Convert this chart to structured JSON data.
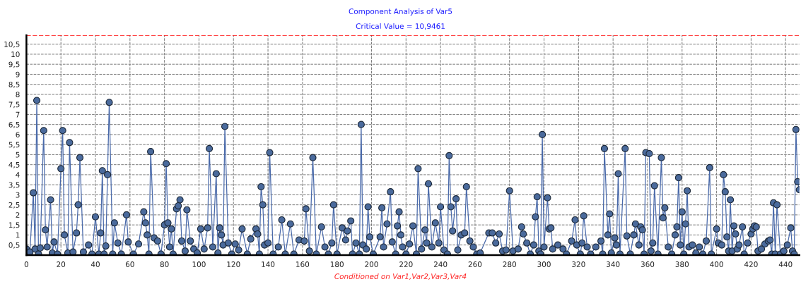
{
  "chart_data": {
    "type": "line",
    "title": "Component Analysis of Var5",
    "subtitle": "Critical Value = 10,9461",
    "annotations": [
      "Conditioned on Var1,Var2,Var3,Var4"
    ],
    "x": [
      0,
      2,
      4,
      5,
      6,
      7,
      8,
      10,
      11,
      12,
      14,
      15,
      16,
      18,
      20,
      21,
      22,
      24,
      25,
      27,
      29,
      30,
      31,
      33,
      36,
      38,
      40,
      42,
      43,
      44,
      45,
      46,
      47,
      48,
      50,
      51,
      53,
      55,
      58,
      59,
      62,
      65,
      68,
      69,
      70,
      71,
      72,
      74,
      76,
      78,
      80,
      81,
      82,
      83,
      84,
      85,
      87,
      88,
      89,
      90,
      92,
      93,
      95,
      97,
      99,
      101,
      103,
      105,
      106,
      108,
      110,
      111,
      112,
      113,
      114,
      115,
      117,
      119,
      121,
      123,
      125,
      128,
      130,
      133,
      134,
      135,
      136,
      137,
      138,
      140,
      141,
      143,
      146,
      148,
      150,
      153,
      155,
      158,
      161,
      162,
      164,
      166,
      168,
      171,
      173,
      175,
      177,
      178,
      180,
      183,
      185,
      186,
      188,
      189,
      191,
      193,
      194,
      195,
      197,
      198,
      199,
      201,
      205,
      206,
      207,
      209,
      211,
      212,
      214,
      215,
      216,
      217,
      218,
      220,
      222,
      224,
      226,
      227,
      229,
      231,
      232,
      233,
      235,
      237,
      239,
      240,
      242,
      244,
      245,
      246,
      247,
      249,
      250,
      252,
      254,
      255,
      257,
      259,
      261,
      263,
      268,
      270,
      272,
      274,
      276,
      278,
      280,
      282,
      285,
      287,
      288,
      290,
      292,
      294,
      295,
      296,
      297,
      298,
      299,
      300,
      302,
      303,
      304,
      305,
      308,
      311,
      313,
      316,
      318,
      319,
      321,
      322,
      323,
      325,
      327,
      330,
      333,
      334,
      335,
      337,
      338,
      339,
      341,
      342,
      343,
      344,
      347,
      348,
      350,
      352,
      353,
      355,
      356,
      357,
      358,
      359,
      361,
      362,
      363,
      364,
      366,
      368,
      369,
      370,
      372,
      374,
      376,
      377,
      378,
      379,
      380,
      381,
      382,
      383,
      384,
      386,
      388,
      390,
      392,
      394,
      396,
      397,
      400,
      401,
      403,
      404,
      405,
      406,
      407,
      408,
      409,
      410,
      411,
      412,
      413,
      415,
      416,
      418,
      420,
      421,
      422,
      423,
      424,
      426,
      428,
      430,
      431,
      432,
      433,
      434,
      435,
      437,
      439,
      441,
      443,
      444,
      445,
      446,
      447,
      448
    ],
    "series": [
      {
        "color": "#4a6aaa",
        "values": [
          0.3,
          0.15,
          3.1,
          0.3,
          7.7,
          0.05,
          0.35,
          6.2,
          1.25,
          0.4,
          2.75,
          0.1,
          0.65,
          0.05,
          4.3,
          6.2,
          1.0,
          0.1,
          5.6,
          0.15,
          1.1,
          2.5,
          4.85,
          0.15,
          0.5,
          0.05,
          1.9,
          0.05,
          1.1,
          4.2,
          0.05,
          0.45,
          4.0,
          7.6,
          0.05,
          1.6,
          0.6,
          0.05,
          2.0,
          0.65,
          0.05,
          0.55,
          2.15,
          1.6,
          1.0,
          0.05,
          5.15,
          0.85,
          0.7,
          0.05,
          1.5,
          4.55,
          1.6,
          0.4,
          1.3,
          0.05,
          2.3,
          2.45,
          2.75,
          0.7,
          0.2,
          2.25,
          0.7,
          0.3,
          0.1,
          1.3,
          0.3,
          1.35,
          5.3,
          0.4,
          4.05,
          0.1,
          1.35,
          1.0,
          0.5,
          6.4,
          0.6,
          0.05,
          0.55,
          0.25,
          1.3,
          0.05,
          0.8,
          1.3,
          1.05,
          0.05,
          3.4,
          2.5,
          0.5,
          0.6,
          5.1,
          0.05,
          0.4,
          1.75,
          0.05,
          1.55,
          0.05,
          0.75,
          0.7,
          2.3,
          0.2,
          4.85,
          0.05,
          1.4,
          0.4,
          0.05,
          0.6,
          2.5,
          0.05,
          1.35,
          0.75,
          1.2,
          1.7,
          0.05,
          0.6,
          0.05,
          6.5,
          0.5,
          0.3,
          2.4,
          0.9,
          0.05,
          0.9,
          2.35,
          0.4,
          1.55,
          3.15,
          0.65,
          0.05,
          1.45,
          2.15,
          1.0,
          0.4,
          0.05,
          0.55,
          1.45,
          0.05,
          4.3,
          0.3,
          1.25,
          0.6,
          3.55,
          0.4,
          1.6,
          0.6,
          2.4,
          0.25,
          0.05,
          4.95,
          2.4,
          1.2,
          2.8,
          0.25,
          1.0,
          1.1,
          3.4,
          0.7,
          0.4,
          0.05,
          0.1,
          1.1,
          1.1,
          0.6,
          1.05,
          0.2,
          0.25,
          3.2,
          0.2,
          0.3,
          1.4,
          1.05,
          0.6,
          0.05,
          0.5,
          1.9,
          2.9,
          0.2,
          0.05,
          6.0,
          0.4,
          2.85,
          1.3,
          1.35,
          0.3,
          0.5,
          0.3,
          0.05,
          0.7,
          1.75,
          0.5,
          0.05,
          0.6,
          1.95,
          0.4,
          0.05,
          0.4,
          0.7,
          0.05,
          5.3,
          1.0,
          2.05,
          0.1,
          0.85,
          0.5,
          4.05,
          0.05,
          5.3,
          0.95,
          0.05,
          1.0,
          1.55,
          0.5,
          1.4,
          1.25,
          0.05,
          5.1,
          5.05,
          0.2,
          0.6,
          3.45,
          0.05,
          4.85,
          1.85,
          2.35,
          0.4,
          0.05,
          1.0,
          1.4,
          3.85,
          0.5,
          2.15,
          0.05,
          1.55,
          3.2,
          0.4,
          0.5,
          0.1,
          0.4,
          0.05,
          0.7,
          4.35,
          0.05,
          1.3,
          0.6,
          0.5,
          4.0,
          3.15,
          0.9,
          0.2,
          2.75,
          0.2,
          1.45,
          1.05,
          0.3,
          0.5,
          1.4,
          0.05,
          0.6,
          1.05,
          1.3,
          1.45,
          1.4,
          0.2,
          0.3,
          0.55,
          0.7,
          0.75,
          0.05,
          2.6,
          0.05,
          2.5,
          0.05,
          0.2,
          0.5,
          1.35,
          0.2,
          0.05,
          6.25,
          3.65,
          3.25
        ]
      }
    ],
    "marker": "circle",
    "line_style": "solid",
    "grid": true,
    "xlim": [
      0,
      448
    ],
    "xticks": [
      0,
      20,
      40,
      60,
      80,
      100,
      120,
      140,
      160,
      180,
      200,
      220,
      240,
      260,
      280,
      300,
      320,
      340,
      360,
      380,
      400,
      420,
      440
    ],
    "ylim": [
      0,
      10.9461
    ],
    "yticks": [
      {
        "value": 0.5,
        "label": "0,5"
      },
      1,
      {
        "value": 1.5,
        "label": "1,5"
      },
      2,
      {
        "value": 2.5,
        "label": "2,5"
      },
      3,
      {
        "value": 3.5,
        "label": "3,5"
      },
      4,
      {
        "value": 4.5,
        "label": "4,5"
      },
      5,
      {
        "value": 5.5,
        "label": "5,5"
      },
      6,
      {
        "value": 6.5,
        "label": "6,5"
      },
      7,
      {
        "value": 7.5,
        "label": "7,5"
      },
      8,
      {
        "value": 8.5,
        "label": "8,5"
      },
      9,
      {
        "value": 9.5,
        "label": "9,5"
      },
      10,
      {
        "value": 10.5,
        "label": "10,5"
      }
    ],
    "ref_lines": [
      {
        "axis": "y",
        "value": 10.9461,
        "color": "#ff0000",
        "line_style": "dashed"
      }
    ]
  }
}
